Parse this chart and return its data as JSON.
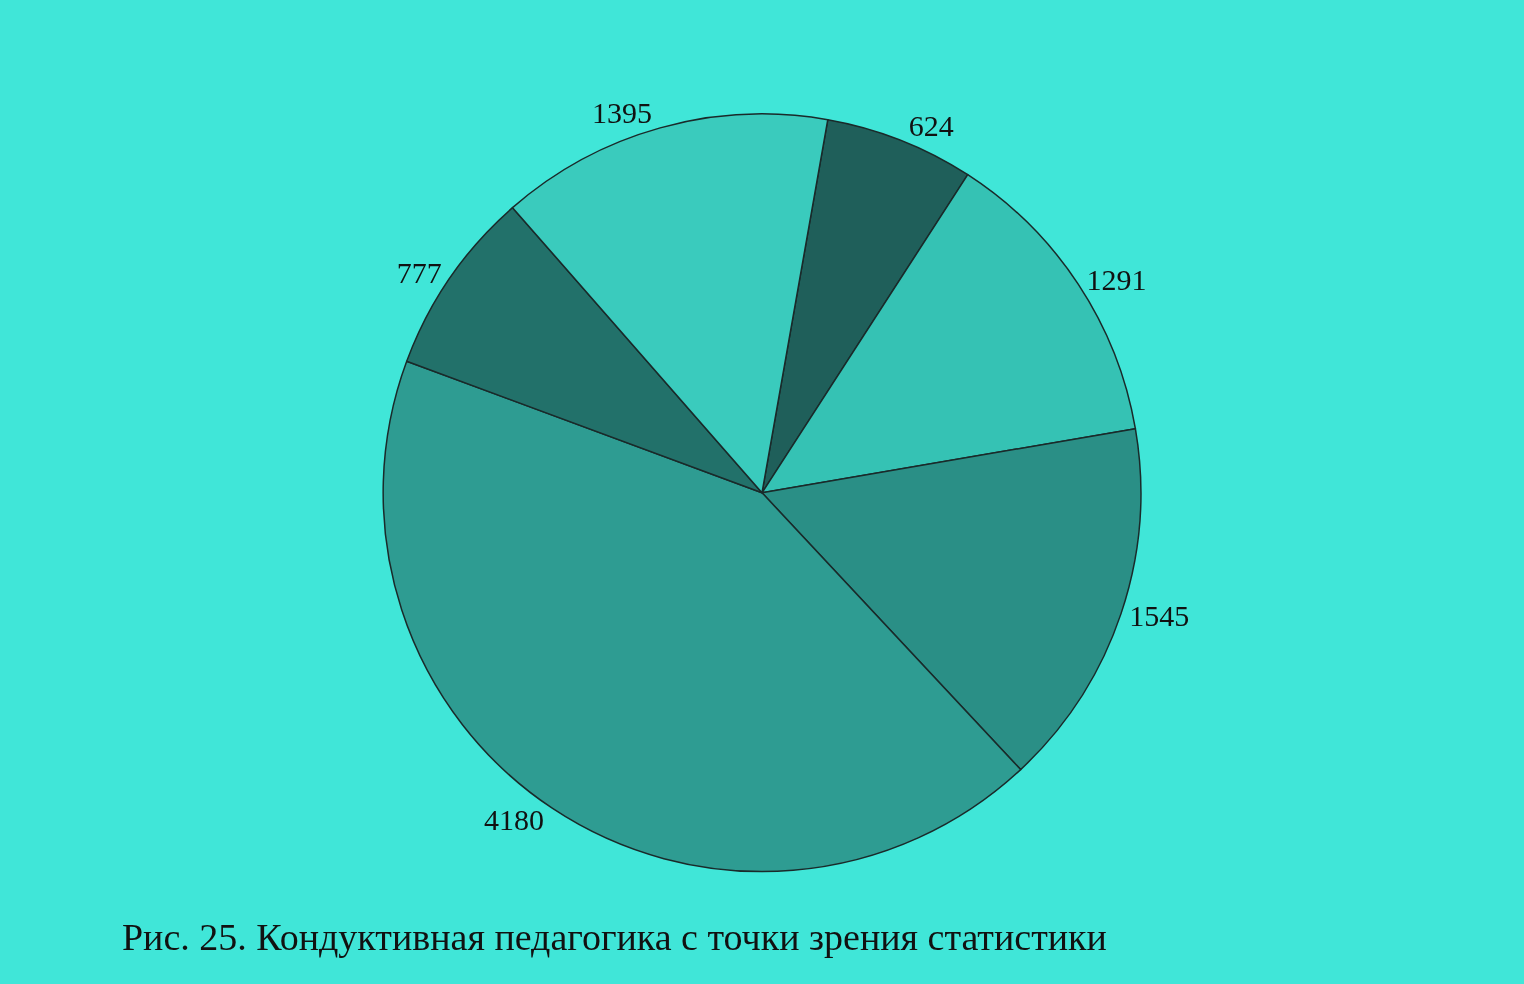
{
  "chart_data": {
    "type": "pie",
    "title": "Рис. 25. Кондуктивная педагогика с точки зрения статистики",
    "categories": [
      null,
      null,
      null,
      null,
      null,
      null
    ],
    "values": [
      624,
      1291,
      1545,
      4180,
      777,
      1395
    ],
    "colors": [
      "#1f5f5a",
      "#35c2b4",
      "#2a8f86",
      "#2e9c92",
      "#22716a",
      "#3acbbd"
    ],
    "data_labels": true,
    "legend": false
  }
}
